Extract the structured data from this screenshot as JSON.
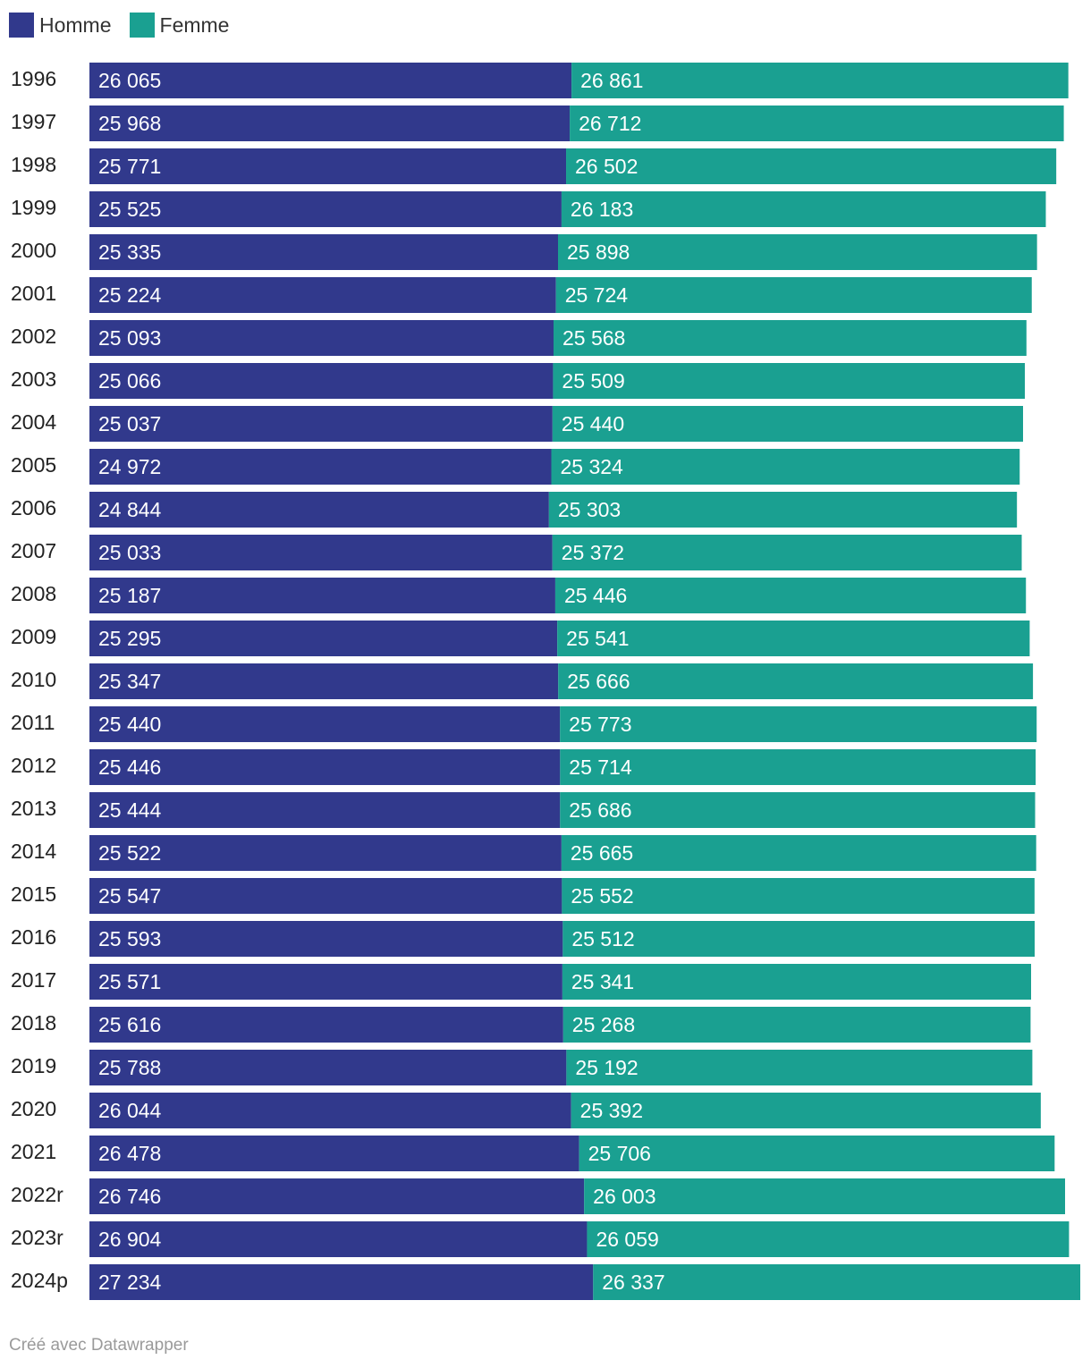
{
  "legend": [
    {
      "label": "Homme",
      "color": "#31398c"
    },
    {
      "label": "Femme",
      "color": "#1aa091"
    }
  ],
  "chart_data": {
    "type": "bar",
    "orientation": "horizontal",
    "stacked": true,
    "categories": [
      "1996",
      "1997",
      "1998",
      "1999",
      "2000",
      "2001",
      "2002",
      "2003",
      "2004",
      "2005",
      "2006",
      "2007",
      "2008",
      "2009",
      "2010",
      "2011",
      "2012",
      "2013",
      "2014",
      "2015",
      "2016",
      "2017",
      "2018",
      "2019",
      "2020",
      "2021",
      "2022r",
      "2023r",
      "2024p"
    ],
    "series": [
      {
        "name": "Homme",
        "color": "#31398c",
        "values": [
          26065,
          25968,
          25771,
          25525,
          25335,
          25224,
          25093,
          25066,
          25037,
          24972,
          24844,
          25033,
          25187,
          25295,
          25347,
          25440,
          25446,
          25444,
          25522,
          25547,
          25593,
          25571,
          25616,
          25788,
          26044,
          26478,
          26746,
          26904,
          27234
        ],
        "labels": [
          "26 065",
          "25 968",
          "25 771",
          "25 525",
          "25 335",
          "25 224",
          "25 093",
          "25 066",
          "25 037",
          "24 972",
          "24 844",
          "25 033",
          "25 187",
          "25 295",
          "25 347",
          "25 440",
          "25 446",
          "25 444",
          "25 522",
          "25 547",
          "25 593",
          "25 571",
          "25 616",
          "25 788",
          "26 044",
          "26 478",
          "26 746",
          "26 904",
          "27 234"
        ]
      },
      {
        "name": "Femme",
        "color": "#1aa091",
        "values": [
          26861,
          26712,
          26502,
          26183,
          25898,
          25724,
          25568,
          25509,
          25440,
          25324,
          25303,
          25372,
          25446,
          25541,
          25666,
          25773,
          25714,
          25686,
          25665,
          25552,
          25512,
          25341,
          25268,
          25192,
          25392,
          25706,
          26003,
          26059,
          26337
        ],
        "labels": [
          "26 861",
          "26 712",
          "26 502",
          "26 183",
          "25 898",
          "25 724",
          "25 568",
          "25 509",
          "25 440",
          "25 324",
          "25 303",
          "25 372",
          "25 446",
          "25 541",
          "25 666",
          "25 773",
          "25 714",
          "25 686",
          "25 665",
          "25 552",
          "25 512",
          "25 341",
          "25 268",
          "25 192",
          "25 392",
          "25 706",
          "26 003",
          "26 059",
          "26 337"
        ]
      }
    ],
    "xlim": [
      0,
      53571
    ],
    "title": "",
    "xlabel": "",
    "ylabel": ""
  },
  "footer": "Créé avec Datawrapper"
}
